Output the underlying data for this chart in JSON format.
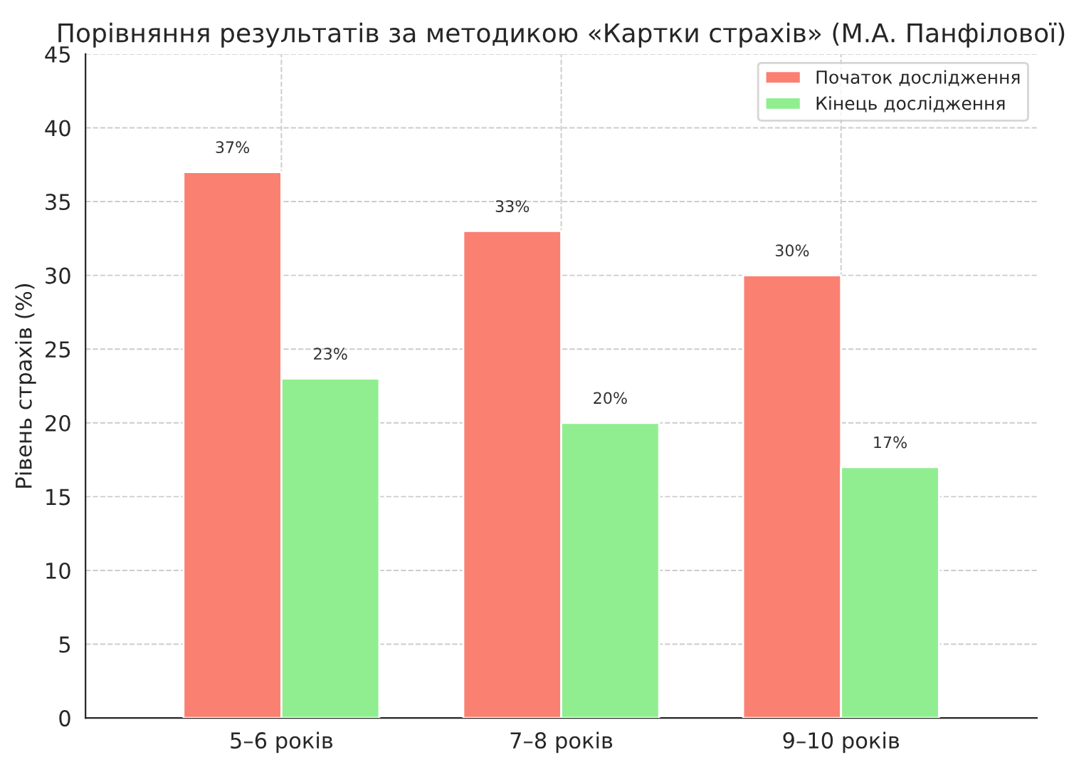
{
  "chart_data": {
    "type": "bar",
    "title": "Порівняння результатів за методикою «Картки страхів» (М.А. Панфілової)",
    "ylabel": "Рівень страхів (%)",
    "categories": [
      "5–6 років",
      "7–8 років",
      "9–10 років"
    ],
    "series": [
      {
        "name": "Початок дослідження",
        "color": "#fa8072",
        "values": [
          37,
          33,
          30
        ],
        "value_labels": [
          "37%",
          "33%",
          "30%"
        ]
      },
      {
        "name": "Кінець дослідження",
        "color": "#90ee90",
        "values": [
          23,
          20,
          17
        ],
        "value_labels": [
          "23%",
          "20%",
          "17%"
        ]
      }
    ],
    "ylim": [
      0,
      45
    ],
    "yticks": [
      0,
      5,
      10,
      15,
      20,
      25,
      30,
      35,
      40,
      45
    ],
    "grid": true,
    "legend": "top right"
  }
}
